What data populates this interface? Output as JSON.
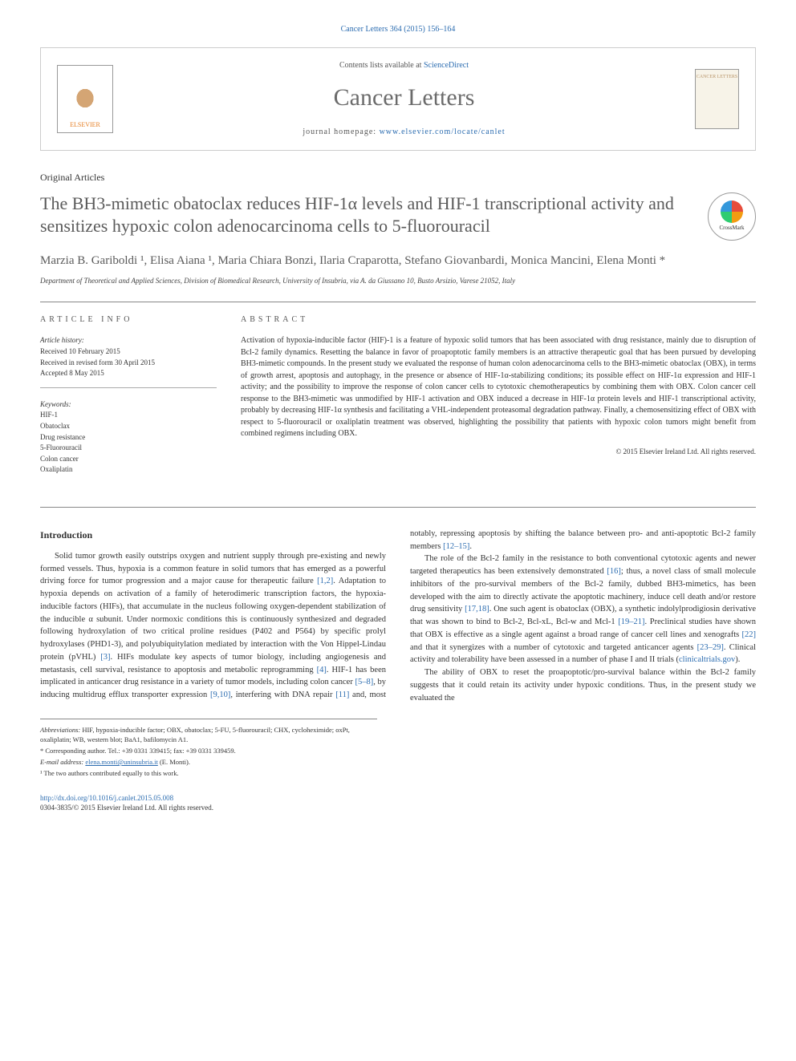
{
  "header": {
    "citation": "Cancer Letters 364 (2015) 156–164",
    "contents_prefix": "Contents lists available at ",
    "contents_link": "ScienceDirect",
    "journal_name": "Cancer Letters",
    "homepage_prefix": "journal homepage: ",
    "homepage_url": "www.elsevier.com/locate/canlet",
    "publisher": "ELSEVIER",
    "cover_label": "CANCER LETTERS"
  },
  "article": {
    "type": "Original Articles",
    "title": "The BH3-mimetic obatoclax reduces HIF-1α levels and HIF-1 transcriptional activity and sensitizes hypoxic colon adenocarcinoma cells to 5-fluorouracil",
    "crossmark": "CrossMark",
    "authors": "Marzia B. Gariboldi ¹, Elisa Aiana ¹, Maria Chiara Bonzi, Ilaria Craparotta, Stefano Giovanbardi, Monica Mancini, Elena Monti *",
    "affiliation": "Department of Theoretical and Applied Sciences, Division of Biomedical Research, University of Insubria, via A. da Giussano 10, Busto Arsizio, Varese 21052, Italy"
  },
  "info": {
    "section_label": "ARTICLE INFO",
    "history_label": "Article history:",
    "received": "Received 10 February 2015",
    "revised": "Received in revised form 30 April 2015",
    "accepted": "Accepted 8 May 2015",
    "keywords_label": "Keywords:",
    "keywords": [
      "HIF-1",
      "Obatoclax",
      "Drug resistance",
      "5-Fluorouracil",
      "Colon cancer",
      "Oxaliplatin"
    ]
  },
  "abstract": {
    "section_label": "ABSTRACT",
    "text": "Activation of hypoxia-inducible factor (HIF)-1 is a feature of hypoxic solid tumors that has been associated with drug resistance, mainly due to disruption of Bcl-2 family dynamics. Resetting the balance in favor of proapoptotic family members is an attractive therapeutic goal that has been pursued by developing BH3-mimetic compounds. In the present study we evaluated the response of human colon adenocarcinoma cells to the BH3-mimetic obatoclax (OBX), in terms of growth arrest, apoptosis and autophagy, in the presence or absence of HIF-1α-stabilizing conditions; its possible effect on HIF-1α expression and HIF-1 activity; and the possibility to improve the response of colon cancer cells to cytotoxic chemotherapeutics by combining them with OBX. Colon cancer cell response to the BH3-mimetic was unmodified by HIF-1 activation and OBX induced a decrease in HIF-1α protein levels and HIF-1 transcriptional activity, probably by decreasing HIF-1α synthesis and facilitating a VHL-independent proteasomal degradation pathway. Finally, a chemosensitizing effect of OBX with respect to 5-fluorouracil or oxaliplatin treatment was observed, highlighting the possibility that patients with hypoxic colon tumors might benefit from combined regimens including OBX.",
    "copyright": "© 2015 Elsevier Ireland Ltd. All rights reserved."
  },
  "body": {
    "heading": "Introduction",
    "p1_pre": "Solid tumor growth easily outstrips oxygen and nutrient supply through pre-existing and newly formed vessels. Thus, hypoxia is a common feature in solid tumors that has emerged as a powerful driving force for tumor progression and a major cause for therapeutic failure ",
    "r1": "[1,2]",
    "p1_mid": ". Adaptation to hypoxia depends on activation of a family of heterodimeric transcription factors, the hypoxia-inducible factors (HIFs), that accumulate in the nucleus following oxygen-dependent stabilization of the inducible α subunit. Under normoxic conditions this is continuously synthesized and degraded following hydroxylation of two critical proline residues (P402 and P564) by specific prolyl hydroxylases (PHD1-3), and polyubiquitylation mediated by interaction with the Von Hippel-Lindau protein (pVHL) ",
    "r2": "[3]",
    "p1_end": ". HIFs modulate key aspects of tumor biology, including angiogenesis and metastasis, cell survival, resistance to apoptosis and metabolic ",
    "p2_pre": "reprogramming ",
    "r3": "[4]",
    "p2_a": ". HIF-1 has been implicated in anticancer drug resistance in a variety of tumor models, including colon cancer ",
    "r4": "[5–8]",
    "p2_b": ", by inducing multidrug efflux transporter expression ",
    "r5": "[9,10]",
    "p2_c": ", interfering with DNA repair ",
    "r6": "[11]",
    "p2_d": " and, most notably, repressing apoptosis by shifting the balance between pro- and anti-apoptotic Bcl-2 family members ",
    "r7": "[12–15]",
    "p2_e": ".",
    "p3_a": "The role of the Bcl-2 family in the resistance to both conventional cytotoxic agents and newer targeted therapeutics has been extensively demonstrated ",
    "r8": "[16]",
    "p3_b": "; thus, a novel class of small molecule inhibitors of the pro-survival members of the Bcl-2 family, dubbed BH3-mimetics, has been developed with the aim to directly activate the apoptotic machinery, induce cell death and/or restore drug sensitivity ",
    "r9": "[17,18]",
    "p3_c": ". One such agent is obatoclax (OBX), a synthetic indolylprodigiosin derivative that was shown to bind to Bcl-2, Bcl-xL, Bcl-w and Mcl-1 ",
    "r10": "[19–21]",
    "p3_d": ". Preclinical studies have shown that OBX is effective as a single agent against a broad range of cancer cell lines and xenografts ",
    "r11": "[22]",
    "p3_e": " and that it synergizes with a number of cytotoxic and targeted anticancer agents ",
    "r12": "[23–29]",
    "p3_f": ". Clinical activity and tolerability have been assessed in a number of phase I and II trials (",
    "r13": "clinicaltrials.gov",
    "p3_g": ").",
    "p4": "The ability of OBX to reset the proapoptotic/pro-survival balance within the Bcl-2 family suggests that it could retain its activity under hypoxic conditions. Thus, in the present study we evaluated the"
  },
  "footnotes": {
    "abbrev_label": "Abbreviations:",
    "abbrev": " HIF, hypoxia-inducible factor; OBX, obatoclax; 5-FU, 5-fluorouracil; CHX, cycloheximide; oxPt, oxaliplatin; WB, western blot; BaA1, bafilomycin A1.",
    "corr": "* Corresponding author. Tel.: +39 0331 339415; fax: +39 0331 339459.",
    "email_label": "E-mail address: ",
    "email": "elena.monti@uninsubria.it",
    "email_suffix": " (E. Monti).",
    "note1": "¹ The two authors contributed equally to this work."
  },
  "doi": {
    "url": "http://dx.doi.org/10.1016/j.canlet.2015.05.008",
    "issn": "0304-3835/© 2015 Elsevier Ireland Ltd. All rights reserved."
  },
  "colors": {
    "link": "#2b6cb0",
    "heading_gray": "#5a5a5a",
    "text": "#333333"
  }
}
